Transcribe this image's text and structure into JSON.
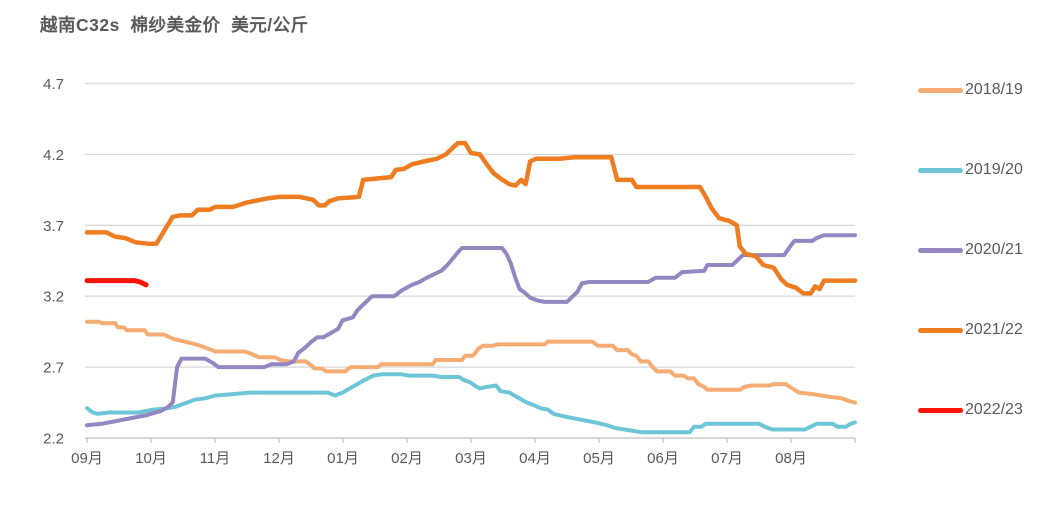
{
  "chart_data": {
    "type": "line",
    "title": "越南C32s  棉纱美金价  美元/公斤",
    "unit": "美元/公斤",
    "ylim": [
      2.2,
      4.7
    ],
    "yticks": [
      4.7,
      4.2,
      3.7,
      3.2,
      2.7,
      2.2
    ],
    "x_axis": {
      "labels": [
        "09月",
        "10月",
        "11月",
        "12月",
        "01月",
        "02月",
        "03月",
        "04月",
        "05月",
        "06月",
        "07月",
        "08月"
      ],
      "weeks_total": 52
    },
    "grid": "horizontal",
    "legend_position": "right",
    "style": {
      "background": "#FFFFFF",
      "grid_color": "#D9D9D9",
      "axis_color": "#BFBFBF",
      "text_color": "#595959",
      "title_color": "#595959"
    },
    "series": [
      {
        "name": "2018/19",
        "color": "#F4AC73",
        "width": 4,
        "points": [
          [
            0,
            3.02
          ],
          [
            0.8,
            3.02
          ],
          [
            1,
            3.01
          ],
          [
            1.9,
            3.01
          ],
          [
            2.1,
            2.98
          ],
          [
            2.5,
            2.98
          ],
          [
            2.7,
            2.96
          ],
          [
            3.9,
            2.96
          ],
          [
            4.1,
            2.93
          ],
          [
            5.2,
            2.93
          ],
          [
            5.8,
            2.9
          ],
          [
            6.6,
            2.88
          ],
          [
            7,
            2.87
          ],
          [
            7.7,
            2.85
          ],
          [
            8.2,
            2.83
          ],
          [
            8.7,
            2.81
          ],
          [
            10.7,
            2.81
          ],
          [
            11.2,
            2.79
          ],
          [
            11.6,
            2.77
          ],
          [
            12.7,
            2.77
          ],
          [
            13.1,
            2.75
          ],
          [
            13.6,
            2.74
          ],
          [
            14.8,
            2.74
          ],
          [
            15.1,
            2.72
          ],
          [
            15.4,
            2.69
          ],
          [
            15.9,
            2.69
          ],
          [
            16.2,
            2.67
          ],
          [
            17.5,
            2.67
          ],
          [
            17.7,
            2.69
          ],
          [
            17.9,
            2.7
          ],
          [
            19.7,
            2.7
          ],
          [
            19.9,
            2.72
          ],
          [
            23.4,
            2.72
          ],
          [
            23.6,
            2.75
          ],
          [
            25.4,
            2.75
          ],
          [
            25.6,
            2.78
          ],
          [
            26.1,
            2.78
          ],
          [
            26.3,
            2.8
          ],
          [
            26.5,
            2.83
          ],
          [
            26.8,
            2.85
          ],
          [
            27.5,
            2.85
          ],
          [
            27.8,
            2.86
          ],
          [
            31,
            2.86
          ],
          [
            31.2,
            2.88
          ],
          [
            34.2,
            2.88
          ],
          [
            34.6,
            2.85
          ],
          [
            35.6,
            2.85
          ],
          [
            35.9,
            2.82
          ],
          [
            36.6,
            2.82
          ],
          [
            36.9,
            2.79
          ],
          [
            37.2,
            2.78
          ],
          [
            37.5,
            2.74
          ],
          [
            38,
            2.74
          ],
          [
            38.3,
            2.7
          ],
          [
            38.6,
            2.67
          ],
          [
            39.5,
            2.67
          ],
          [
            39.8,
            2.64
          ],
          [
            40.4,
            2.64
          ],
          [
            40.7,
            2.62
          ],
          [
            41.1,
            2.62
          ],
          [
            41.4,
            2.58
          ],
          [
            41.8,
            2.56
          ],
          [
            42,
            2.54
          ],
          [
            44.2,
            2.54
          ],
          [
            44.5,
            2.56
          ],
          [
            45,
            2.57
          ],
          [
            46.2,
            2.57
          ],
          [
            46.5,
            2.58
          ],
          [
            47.3,
            2.58
          ],
          [
            47.6,
            2.56
          ],
          [
            48.2,
            2.52
          ],
          [
            49.1,
            2.51
          ],
          [
            50.3,
            2.49
          ],
          [
            51.1,
            2.48
          ],
          [
            51.6,
            2.46
          ],
          [
            52,
            2.45
          ]
        ]
      },
      {
        "name": "2019/20",
        "color": "#6EC5D7",
        "width": 4,
        "points": [
          [
            0,
            2.41
          ],
          [
            0.4,
            2.38
          ],
          [
            0.7,
            2.37
          ],
          [
            1.5,
            2.38
          ],
          [
            3.5,
            2.38
          ],
          [
            4.5,
            2.4
          ],
          [
            5.5,
            2.41
          ],
          [
            6,
            2.42
          ],
          [
            6.5,
            2.44
          ],
          [
            7.3,
            2.47
          ],
          [
            8,
            2.48
          ],
          [
            8.7,
            2.5
          ],
          [
            10,
            2.51
          ],
          [
            11,
            2.52
          ],
          [
            16.3,
            2.52
          ],
          [
            16.8,
            2.5
          ],
          [
            17.3,
            2.52
          ],
          [
            17.8,
            2.55
          ],
          [
            18.3,
            2.58
          ],
          [
            18.8,
            2.61
          ],
          [
            19.4,
            2.64
          ],
          [
            20,
            2.65
          ],
          [
            21.2,
            2.65
          ],
          [
            21.8,
            2.64
          ],
          [
            23.4,
            2.64
          ],
          [
            24,
            2.63
          ],
          [
            25.2,
            2.63
          ],
          [
            25.5,
            2.61
          ],
          [
            26,
            2.59
          ],
          [
            26.4,
            2.56
          ],
          [
            26.6,
            2.55
          ],
          [
            27,
            2.56
          ],
          [
            27.7,
            2.57
          ],
          [
            28,
            2.53
          ],
          [
            28.6,
            2.52
          ],
          [
            29.1,
            2.49
          ],
          [
            29.8,
            2.45
          ],
          [
            30.3,
            2.43
          ],
          [
            30.7,
            2.41
          ],
          [
            31.2,
            2.4
          ],
          [
            31.6,
            2.37
          ],
          [
            32.4,
            2.35
          ],
          [
            33.4,
            2.33
          ],
          [
            34.4,
            2.31
          ],
          [
            35.2,
            2.29
          ],
          [
            35.8,
            2.27
          ],
          [
            36.4,
            2.26
          ],
          [
            37,
            2.25
          ],
          [
            37.6,
            2.24
          ],
          [
            40.8,
            2.24
          ],
          [
            41.1,
            2.28
          ],
          [
            41.6,
            2.28
          ],
          [
            41.9,
            2.3
          ],
          [
            45.5,
            2.3
          ],
          [
            45.9,
            2.28
          ],
          [
            46.4,
            2.26
          ],
          [
            48.6,
            2.26
          ],
          [
            49,
            2.28
          ],
          [
            49.4,
            2.3
          ],
          [
            50.5,
            2.3
          ],
          [
            50.8,
            2.28
          ],
          [
            51.4,
            2.28
          ],
          [
            51.7,
            2.3
          ],
          [
            52,
            2.31
          ]
        ]
      },
      {
        "name": "2020/21",
        "color": "#9486C1",
        "width": 4,
        "points": [
          [
            0,
            2.29
          ],
          [
            1,
            2.3
          ],
          [
            2,
            2.32
          ],
          [
            3,
            2.34
          ],
          [
            4,
            2.36
          ],
          [
            5,
            2.39
          ],
          [
            5.5,
            2.42
          ],
          [
            5.8,
            2.45
          ],
          [
            6.1,
            2.7
          ],
          [
            6.4,
            2.76
          ],
          [
            8,
            2.76
          ],
          [
            8.5,
            2.73
          ],
          [
            8.9,
            2.7
          ],
          [
            12,
            2.7
          ],
          [
            12.5,
            2.72
          ],
          [
            13.5,
            2.72
          ],
          [
            14,
            2.74
          ],
          [
            14.3,
            2.8
          ],
          [
            14.8,
            2.84
          ],
          [
            15.2,
            2.88
          ],
          [
            15.6,
            2.91
          ],
          [
            16,
            2.91
          ],
          [
            16.5,
            2.94
          ],
          [
            17,
            2.97
          ],
          [
            17.3,
            3.03
          ],
          [
            18,
            3.05
          ],
          [
            18.3,
            3.1
          ],
          [
            18.6,
            3.13
          ],
          [
            19,
            3.17
          ],
          [
            19.3,
            3.2
          ],
          [
            20.8,
            3.2
          ],
          [
            21.3,
            3.24
          ],
          [
            22,
            3.28
          ],
          [
            22.5,
            3.3
          ],
          [
            23,
            3.33
          ],
          [
            23.6,
            3.36
          ],
          [
            24,
            3.38
          ],
          [
            24.4,
            3.42
          ],
          [
            24.8,
            3.47
          ],
          [
            25.2,
            3.52
          ],
          [
            25.4,
            3.54
          ],
          [
            28.1,
            3.54
          ],
          [
            28.4,
            3.5
          ],
          [
            28.7,
            3.43
          ],
          [
            29,
            3.33
          ],
          [
            29.3,
            3.25
          ],
          [
            29.7,
            3.22
          ],
          [
            30,
            3.19
          ],
          [
            30.5,
            3.17
          ],
          [
            31,
            3.16
          ],
          [
            32.5,
            3.16
          ],
          [
            32.9,
            3.2
          ],
          [
            33.2,
            3.23
          ],
          [
            33.5,
            3.29
          ],
          [
            34,
            3.3
          ],
          [
            38,
            3.3
          ],
          [
            38.5,
            3.33
          ],
          [
            39.8,
            3.33
          ],
          [
            40.3,
            3.37
          ],
          [
            41.8,
            3.38
          ],
          [
            42,
            3.42
          ],
          [
            43.7,
            3.42
          ],
          [
            44,
            3.45
          ],
          [
            44.4,
            3.49
          ],
          [
            47.2,
            3.49
          ],
          [
            47.6,
            3.55
          ],
          [
            47.9,
            3.59
          ],
          [
            49.1,
            3.59
          ],
          [
            49.4,
            3.61
          ],
          [
            49.9,
            3.63
          ],
          [
            52,
            3.63
          ]
        ]
      },
      {
        "name": "2021/22",
        "color": "#EE7C21",
        "width": 4.5,
        "points": [
          [
            0,
            3.65
          ],
          [
            1.3,
            3.65
          ],
          [
            1.9,
            3.62
          ],
          [
            2.6,
            3.61
          ],
          [
            3.3,
            3.58
          ],
          [
            4.1,
            3.57
          ],
          [
            4.7,
            3.57
          ],
          [
            5.8,
            3.76
          ],
          [
            6.3,
            3.77
          ],
          [
            7.1,
            3.77
          ],
          [
            7.5,
            3.81
          ],
          [
            8.3,
            3.81
          ],
          [
            8.7,
            3.83
          ],
          [
            9.9,
            3.83
          ],
          [
            10.8,
            3.86
          ],
          [
            12.2,
            3.89
          ],
          [
            13,
            3.9
          ],
          [
            14.4,
            3.9
          ],
          [
            15.3,
            3.88
          ],
          [
            15.7,
            3.84
          ],
          [
            16.1,
            3.84
          ],
          [
            16.4,
            3.87
          ],
          [
            17,
            3.89
          ],
          [
            18.4,
            3.9
          ],
          [
            18.7,
            4.02
          ],
          [
            19.6,
            4.03
          ],
          [
            20.6,
            4.04
          ],
          [
            20.9,
            4.09
          ],
          [
            21.5,
            4.1
          ],
          [
            22,
            4.13
          ],
          [
            22.8,
            4.15
          ],
          [
            23.7,
            4.17
          ],
          [
            24.3,
            4.2
          ],
          [
            24.7,
            4.24
          ],
          [
            25.1,
            4.28
          ],
          [
            25.6,
            4.28
          ],
          [
            26,
            4.21
          ],
          [
            26.6,
            4.2
          ],
          [
            27,
            4.14
          ],
          [
            27.5,
            4.07
          ],
          [
            28,
            4.03
          ],
          [
            28.6,
            3.99
          ],
          [
            29,
            3.98
          ],
          [
            29.4,
            4.02
          ],
          [
            29.7,
            3.99
          ],
          [
            30,
            4.15
          ],
          [
            30.4,
            4.17
          ],
          [
            32,
            4.17
          ],
          [
            33,
            4.18
          ],
          [
            35.5,
            4.18
          ],
          [
            35.9,
            4.02
          ],
          [
            36.9,
            4.02
          ],
          [
            37.2,
            3.97
          ],
          [
            41.5,
            3.97
          ],
          [
            41.9,
            3.9
          ],
          [
            42.3,
            3.82
          ],
          [
            42.8,
            3.75
          ],
          [
            43.5,
            3.73
          ],
          [
            44,
            3.7
          ],
          [
            44.2,
            3.55
          ],
          [
            44.6,
            3.5
          ],
          [
            45.3,
            3.48
          ],
          [
            45.8,
            3.42
          ],
          [
            46.5,
            3.4
          ],
          [
            47,
            3.32
          ],
          [
            47.4,
            3.28
          ],
          [
            48,
            3.26
          ],
          [
            48.5,
            3.22
          ],
          [
            49,
            3.22
          ],
          [
            49.3,
            3.27
          ],
          [
            49.6,
            3.25
          ],
          [
            49.9,
            3.31
          ],
          [
            52,
            3.31
          ]
        ]
      },
      {
        "name": "2022/23",
        "color": "#F81208",
        "width": 5,
        "points": [
          [
            0,
            3.31
          ],
          [
            3.2,
            3.31
          ],
          [
            3.6,
            3.3
          ],
          [
            4,
            3.28
          ]
        ]
      }
    ]
  }
}
